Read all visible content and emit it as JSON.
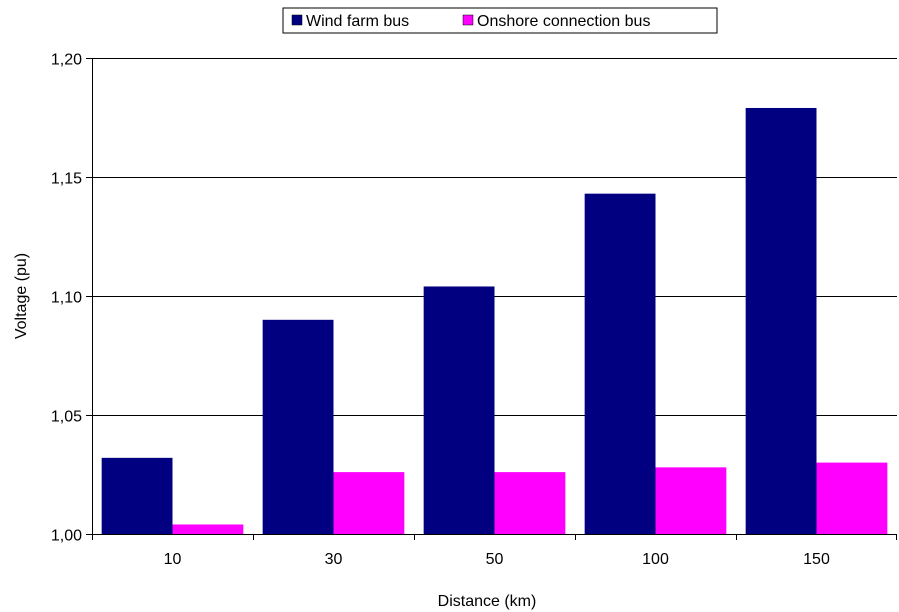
{
  "chart_data": {
    "type": "bar",
    "categories": [
      "10",
      "30",
      "50",
      "100",
      "150"
    ],
    "series": [
      {
        "name": "Wind farm bus",
        "values": [
          1.032,
          1.09,
          1.104,
          1.143,
          1.179
        ],
        "color": "#000080"
      },
      {
        "name": "Onshore connection bus",
        "values": [
          1.004,
          1.026,
          1.026,
          1.028,
          1.03
        ],
        "color": "#FF00FF"
      }
    ],
    "xlabel": "Distance (km)",
    "ylabel": "Voltage (pu)",
    "ylim": [
      1.0,
      1.2
    ],
    "yticks": [
      "1,00",
      "1,05",
      "1,10",
      "1,15",
      "1,20"
    ],
    "ytick_values": [
      1.0,
      1.05,
      1.1,
      1.15,
      1.2
    ],
    "grid": "horizontal",
    "legend_position": "top-center"
  }
}
